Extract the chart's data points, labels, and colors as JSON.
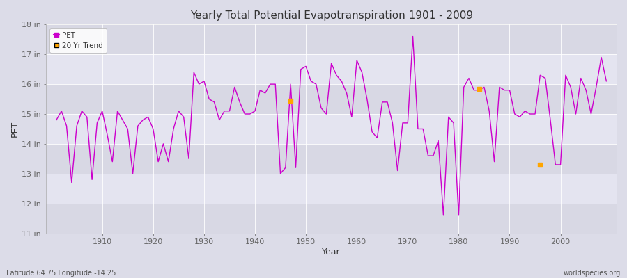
{
  "title": "Yearly Total Potential Evapotranspiration 1901 - 2009",
  "xlabel": "Year",
  "ylabel": "PET",
  "subtitle_left": "Latitude 64.75 Longitude -14.25",
  "subtitle_right": "worldspecies.org",
  "ylim": [
    11,
    18
  ],
  "yticks": [
    11,
    12,
    13,
    14,
    15,
    16,
    17,
    18
  ],
  "ytick_labels": [
    "11 in",
    "12 in",
    "13 in",
    "14 in",
    "15 in",
    "16 in",
    "17 in",
    "18 in"
  ],
  "bg_color": "#dcdce8",
  "plot_bg_color": "#dcdce8",
  "line_color": "#cc00cc",
  "trend_color": "#ffa500",
  "pet_line_data": {
    "years": [
      1901,
      1902,
      1903,
      1904,
      1905,
      1906,
      1907,
      1908,
      1909,
      1910,
      1911,
      1912,
      1913,
      1914,
      1915,
      1916,
      1917,
      1918,
      1919,
      1920,
      1921,
      1922,
      1923,
      1924,
      1925,
      1926,
      1927,
      1928,
      1929,
      1930,
      1931,
      1932,
      1933,
      1934,
      1935,
      1936,
      1937,
      1938,
      1939,
      1940,
      1941,
      1942,
      1943,
      1944,
      1945,
      1946,
      1947,
      1948,
      1949,
      1950,
      1951,
      1952,
      1953,
      1954,
      1955,
      1956,
      1957,
      1958,
      1959,
      1960,
      1961,
      1962,
      1963,
      1964,
      1965,
      1966,
      1967,
      1968,
      1969,
      1970,
      1971,
      1972,
      1973,
      1974,
      1975,
      1976,
      1977,
      1978,
      1979,
      1980,
      1981,
      1982,
      1983,
      1984,
      1985,
      1986,
      1987,
      1988,
      1989,
      1990,
      1991,
      1992,
      1993,
      1994,
      1995,
      1996,
      1997,
      1998,
      1999,
      2000,
      2001,
      2002,
      2003,
      2004,
      2005,
      2006,
      2007,
      2008,
      2009
    ],
    "values": [
      14.8,
      15.1,
      14.6,
      12.7,
      14.6,
      15.1,
      14.9,
      12.8,
      14.7,
      15.1,
      14.3,
      13.4,
      15.1,
      14.8,
      14.5,
      13.0,
      14.6,
      14.8,
      14.9,
      14.5,
      13.4,
      14.0,
      13.4,
      14.5,
      15.1,
      14.9,
      13.5,
      16.4,
      16.0,
      16.1,
      15.5,
      15.4,
      14.8,
      15.1,
      15.1,
      15.9,
      15.4,
      15.0,
      15.0,
      15.1,
      15.8,
      15.7,
      16.0,
      16.0,
      13.0,
      13.2,
      16.0,
      13.2,
      16.5,
      16.6,
      16.1,
      16.0,
      15.2,
      15.0,
      16.7,
      16.3,
      16.1,
      15.7,
      14.9,
      16.8,
      16.4,
      15.5,
      14.4,
      14.2,
      15.4,
      15.4,
      14.7,
      13.1,
      14.7,
      14.7,
      17.6,
      14.5,
      14.5,
      13.6,
      13.6,
      14.1,
      11.6,
      14.9,
      14.7,
      11.6,
      15.9,
      16.2,
      15.8,
      15.8,
      15.9,
      15.1,
      13.4,
      15.9,
      15.8,
      15.8,
      15.0,
      14.9,
      15.1,
      15.0,
      15.0,
      16.3,
      16.2,
      14.8,
      13.3,
      13.3,
      16.3,
      15.9,
      15.0,
      16.2,
      15.8,
      15.0,
      15.9,
      16.9,
      16.1
    ]
  },
  "trend_data": {
    "years": [
      1947,
      1984,
      1996
    ],
    "values": [
      15.45,
      15.85,
      13.3
    ]
  },
  "grid_color": "#ffffff",
  "tick_color": "#666666",
  "font_color": "#333333",
  "stripe_colors": [
    "#d8d8e4",
    "#e4e4f0"
  ],
  "xticks": [
    1910,
    1920,
    1930,
    1940,
    1950,
    1960,
    1970,
    1980,
    1990,
    2000
  ]
}
